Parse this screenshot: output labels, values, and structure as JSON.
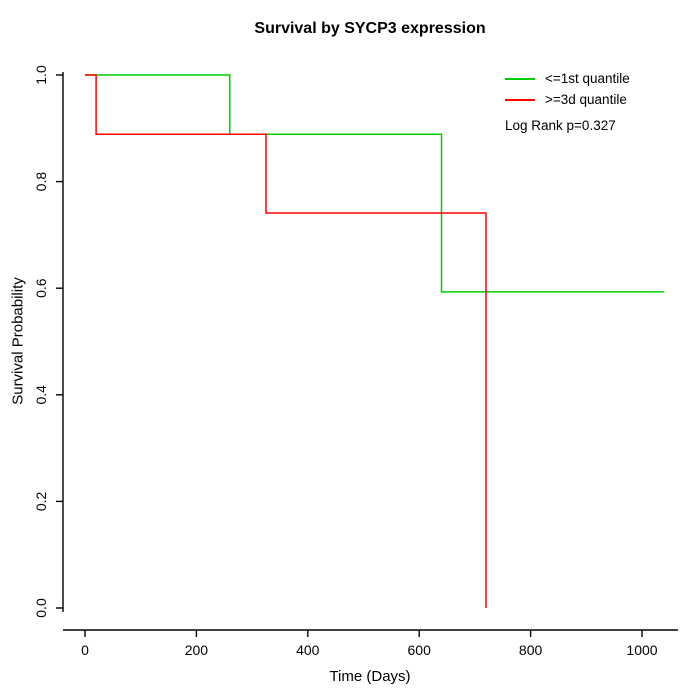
{
  "chart_data": {
    "type": "line",
    "subtype": "kaplan-meier-step",
    "title": "Survival by SYCP3 expression",
    "xlabel": "Time (Days)",
    "ylabel": "Survival Probability",
    "xlim": [
      0,
      1100
    ],
    "ylim": [
      0.0,
      1.0
    ],
    "xticks": [
      0,
      200,
      400,
      600,
      800,
      1000
    ],
    "xtick_labels": [
      "0",
      "200",
      "400",
      "600",
      "800",
      "1000"
    ],
    "yticks": [
      0.0,
      0.2,
      0.4,
      0.6,
      0.8,
      1.0
    ],
    "ytick_labels": [
      "0.0",
      "0.2",
      "0.4",
      "0.6",
      "0.8",
      "1.0"
    ],
    "grid": false,
    "legend_position": "top-right",
    "annotation": "Log Rank p=0.327",
    "axis_color": "#000000",
    "series": [
      {
        "name": "<=1st quantile",
        "color": "#00cc00",
        "points": [
          [
            0,
            1.0
          ],
          [
            260,
            1.0
          ],
          [
            260,
            0.889
          ],
          [
            640,
            0.889
          ],
          [
            640,
            0.593
          ],
          [
            1040,
            0.593
          ]
        ]
      },
      {
        "name": ">=3d quantile",
        "color": "#ff0000",
        "points": [
          [
            0,
            1.0
          ],
          [
            20,
            1.0
          ],
          [
            20,
            0.889
          ],
          [
            325,
            0.889
          ],
          [
            325,
            0.741
          ],
          [
            720,
            0.741
          ],
          [
            720,
            0.0
          ]
        ]
      }
    ]
  }
}
